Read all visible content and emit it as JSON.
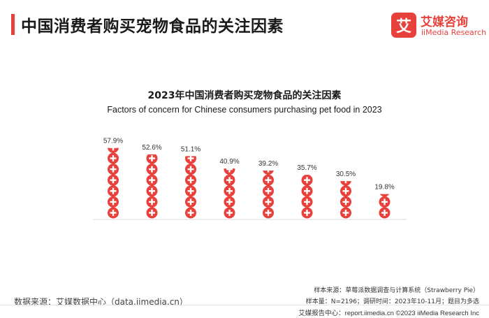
{
  "header": {
    "title": "中国消费者购买宠物食品的关注因素",
    "accent_color": "#e8413b"
  },
  "brand": {
    "logo_char": "艾",
    "name_cn": "艾媒咨询",
    "name_en": "iiMedia Research",
    "color": "#e8413b"
  },
  "chart_data": {
    "type": "bar",
    "title": "2023年中国消费者购买宠物食品的关注因素",
    "subtitle": "Factors of concern for Chinese consumers purchasing pet food in 2023",
    "categories": [
      "",
      "",
      "",
      "",
      "",
      "",
      "",
      ""
    ],
    "values": [
      57.9,
      52.6,
      51.1,
      40.9,
      39.2,
      35.7,
      30.5,
      19.8
    ],
    "value_labels": [
      "57.9%",
      "52.6%",
      "51.1%",
      "40.9%",
      "39.2%",
      "35.7%",
      "30.5%",
      "19.8%"
    ],
    "unit": "%",
    "ylim": [
      0,
      60
    ],
    "mark": "stacked plus-sign circles",
    "color": "#e8413b",
    "grid": false
  },
  "footer": {
    "source": "数据来源：艾媒数据中心（data.iimedia.cn）",
    "sample_source": "样本来源：草莓派数据调查与计算系统（Strawberry Pie）",
    "sample_info": "样本量：N=2196；调研时间：2023年10-11月；题目为多选",
    "report_line": "艾媒报告中心：report.iimedia.cn  ©2023  iiMedia Research  Inc"
  }
}
